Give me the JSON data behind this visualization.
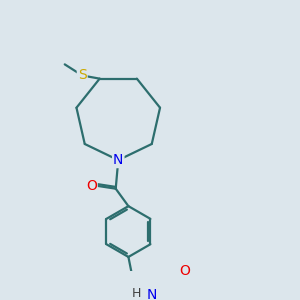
{
  "background_color": "#dce6ec",
  "bond_color": "#2d6e6e",
  "atom_colors": {
    "N": "#0000ee",
    "O": "#ee0000",
    "S": "#ccaa00",
    "C": "#000000",
    "H": "#404040"
  },
  "line_width": 1.6,
  "font_size": 10,
  "fig_bg": "#dce6ec"
}
